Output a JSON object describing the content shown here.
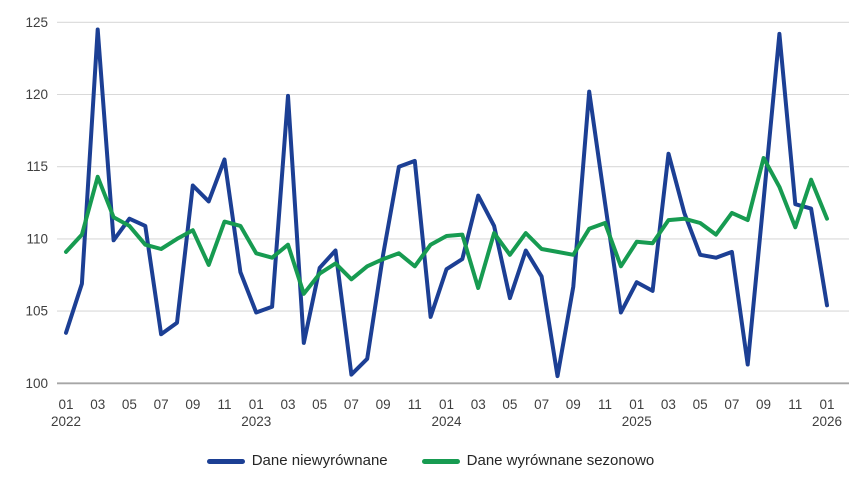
{
  "chart_data": {
    "type": "line",
    "title": "",
    "x": [
      "01.2022",
      "02.2022",
      "03.2022",
      "04.2022",
      "05.2022",
      "06.2022",
      "07.2022",
      "08.2022",
      "09.2022",
      "10.2022",
      "11.2022",
      "12.2022",
      "01.2023",
      "02.2023",
      "03.2023",
      "04.2023",
      "05.2023",
      "06.2023",
      "07.2023",
      "08.2023",
      "09.2023",
      "10.2023",
      "11.2023",
      "12.2023",
      "01.2024",
      "02.2024",
      "03.2024",
      "04.2024",
      "05.2024",
      "06.2024",
      "07.2024",
      "08.2024",
      "09.2024",
      "10.2024",
      "11.2024",
      "12.2024",
      "01.2025",
      "02.2025",
      "03.2025",
      "04.2025",
      "05.2025",
      "06.2025",
      "07.2025",
      "08.2025",
      "09.2025",
      "10.2025",
      "11.2025",
      "12.2025",
      "01.2026"
    ],
    "series": [
      {
        "name": "Dane niewyrównane",
        "color": "#1c3f94",
        "values": [
          103.5,
          106.9,
          124.5,
          109.9,
          111.4,
          110.9,
          103.4,
          104.2,
          113.7,
          112.6,
          115.5,
          107.7,
          104.9,
          105.3,
          119.9,
          102.8,
          108.0,
          109.2,
          100.6,
          101.7,
          108.9,
          115.0,
          115.4,
          104.6,
          107.9,
          108.6,
          113.0,
          110.9,
          105.9,
          109.2,
          107.4,
          100.5,
          106.7,
          120.2,
          112.5,
          104.9,
          107.0,
          106.4,
          115.9,
          111.8,
          108.9,
          108.7,
          109.1,
          101.3,
          112.7,
          124.2,
          112.4,
          112.1,
          105.4
        ]
      },
      {
        "name": "Dane wyrównane sezonowo",
        "color": "#179b51",
        "values": [
          109.1,
          110.3,
          114.3,
          111.5,
          110.9,
          109.6,
          109.3,
          110.0,
          110.6,
          108.2,
          111.2,
          110.9,
          109.0,
          108.7,
          109.6,
          106.2,
          107.6,
          108.3,
          107.2,
          108.1,
          108.6,
          109.0,
          108.1,
          109.6,
          110.2,
          110.3,
          106.6,
          110.4,
          108.9,
          110.4,
          109.3,
          109.1,
          108.9,
          110.7,
          111.1,
          108.1,
          109.8,
          109.7,
          111.3,
          111.4,
          111.1,
          110.3,
          111.8,
          111.3,
          115.6,
          113.6,
          110.8,
          114.1,
          111.4
        ]
      }
    ],
    "ylim": [
      100,
      125
    ],
    "yticks": [
      "100",
      "105",
      "110",
      "115",
      "120",
      "125"
    ],
    "xticks": [
      {
        "i": 0,
        "m": "01",
        "yr": "2022"
      },
      {
        "i": 2,
        "m": "03",
        "yr": ""
      },
      {
        "i": 4,
        "m": "05",
        "yr": ""
      },
      {
        "i": 6,
        "m": "07",
        "yr": ""
      },
      {
        "i": 8,
        "m": "09",
        "yr": ""
      },
      {
        "i": 10,
        "m": "11",
        "yr": ""
      },
      {
        "i": 12,
        "m": "01",
        "yr": "2023"
      },
      {
        "i": 14,
        "m": "03",
        "yr": ""
      },
      {
        "i": 16,
        "m": "05",
        "yr": ""
      },
      {
        "i": 18,
        "m": "07",
        "yr": ""
      },
      {
        "i": 20,
        "m": "09",
        "yr": ""
      },
      {
        "i": 22,
        "m": "11",
        "yr": ""
      },
      {
        "i": 24,
        "m": "01",
        "yr": "2024"
      },
      {
        "i": 26,
        "m": "03",
        "yr": ""
      },
      {
        "i": 28,
        "m": "05",
        "yr": ""
      },
      {
        "i": 30,
        "m": "07",
        "yr": ""
      },
      {
        "i": 32,
        "m": "09",
        "yr": ""
      },
      {
        "i": 34,
        "m": "11",
        "yr": ""
      },
      {
        "i": 36,
        "m": "01",
        "yr": "2025"
      },
      {
        "i": 38,
        "m": "03",
        "yr": ""
      },
      {
        "i": 40,
        "m": "05",
        "yr": ""
      },
      {
        "i": 42,
        "m": "07",
        "yr": ""
      },
      {
        "i": 44,
        "m": "09",
        "yr": ""
      },
      {
        "i": 46,
        "m": "11",
        "yr": ""
      },
      {
        "i": 48,
        "m": "01",
        "yr": "2026"
      }
    ],
    "grid": true,
    "legend_position": "bottom",
    "colors": {
      "gridline": "#d9d9d9",
      "axis_line": "#a6a6a6",
      "tick_text": "#3f3f3f"
    }
  },
  "legend": {
    "items": [
      {
        "label": "Dane niewyrównane"
      },
      {
        "label": "Dane wyrównane sezonowo"
      }
    ]
  }
}
